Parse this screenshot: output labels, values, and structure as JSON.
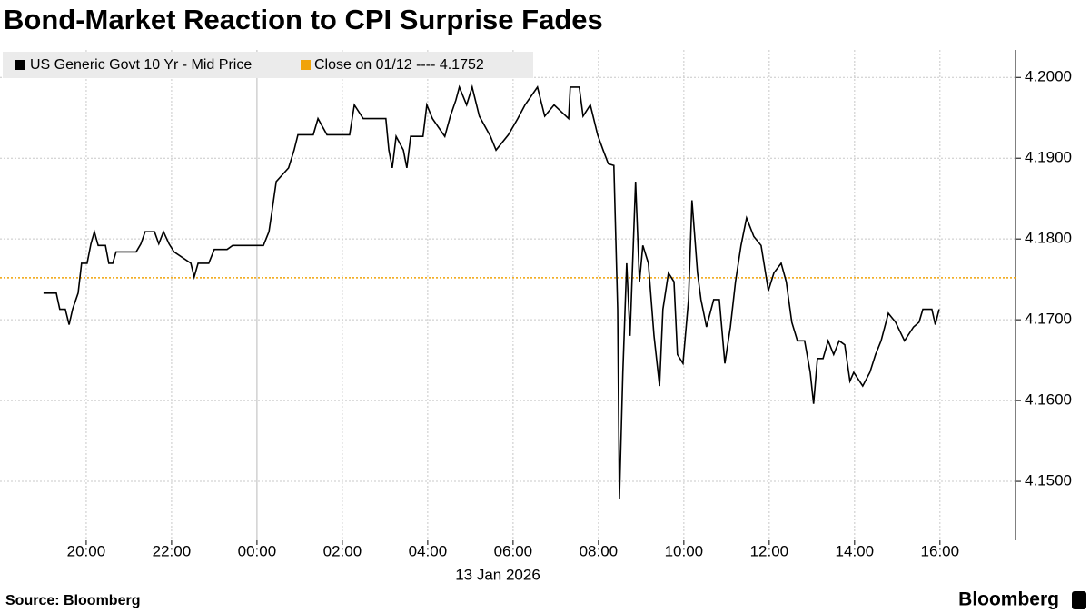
{
  "chart_data": {
    "type": "line",
    "title": "Bond-Market Reaction to CPI Surprise Fades",
    "x_sublabel": "13 Jan 2026",
    "source": "Source: Bloomberg",
    "brand": "Bloomberg",
    "x": [
      -5.0,
      -4.7,
      -4.62,
      -4.49,
      -4.4,
      -4.32,
      -4.19,
      -4.11,
      -3.98,
      -3.89,
      -3.81,
      -3.72,
      -3.55,
      -3.47,
      -3.38,
      -3.3,
      -2.83,
      -2.72,
      -2.62,
      -2.4,
      -2.3,
      -2.19,
      -2.06,
      -1.94,
      -1.55,
      -1.47,
      -1.38,
      -1.13,
      -1.0,
      -0.7,
      -0.57,
      0.15,
      0.28,
      0.36,
      0.45,
      0.74,
      0.87,
      0.96,
      1.32,
      1.43,
      1.64,
      2.17,
      2.28,
      2.49,
      3.02,
      3.09,
      3.17,
      3.26,
      3.43,
      3.51,
      3.6,
      3.89,
      3.98,
      4.11,
      4.4,
      4.53,
      4.66,
      4.74,
      4.91,
      5.04,
      5.21,
      5.47,
      5.6,
      5.89,
      6.11,
      6.28,
      6.57,
      6.74,
      6.96,
      7.3,
      7.34,
      7.55,
      7.64,
      7.81,
      7.98,
      8.11,
      8.23,
      8.36,
      8.45,
      8.49,
      8.57,
      8.66,
      8.74,
      8.87,
      8.96,
      9.04,
      9.17,
      9.3,
      9.43,
      9.51,
      9.64,
      9.77,
      9.85,
      9.98,
      10.11,
      10.19,
      10.32,
      10.4,
      10.53,
      10.7,
      10.83,
      10.96,
      11.09,
      11.21,
      11.34,
      11.47,
      11.64,
      11.81,
      11.98,
      12.11,
      12.28,
      12.4,
      12.53,
      12.66,
      12.83,
      12.96,
      13.04,
      13.13,
      13.26,
      13.38,
      13.51,
      13.64,
      13.77,
      13.89,
      13.98,
      14.19,
      14.36,
      14.49,
      14.62,
      14.79,
      14.96,
      15.17,
      15.38,
      15.51,
      15.6,
      15.81,
      15.89,
      15.98
    ],
    "series": [
      {
        "name": "US Generic Govt 10 Yr - Mid Price",
        "color": "#000000",
        "values": [
          4.1733,
          4.1733,
          4.1713,
          4.1713,
          4.1694,
          4.1713,
          4.1733,
          4.177,
          4.177,
          4.1794,
          4.1809,
          4.1792,
          4.1792,
          4.177,
          4.177,
          4.1784,
          4.1784,
          4.1794,
          4.1809,
          4.1809,
          4.1794,
          4.1809,
          4.1794,
          4.1784,
          4.177,
          4.1753,
          4.177,
          4.177,
          4.1787,
          4.1787,
          4.1792,
          4.1792,
          4.1809,
          4.1837,
          4.1871,
          4.1888,
          4.191,
          4.1929,
          4.1929,
          4.1949,
          4.1929,
          4.1929,
          4.1966,
          4.1949,
          4.1949,
          4.191,
          4.1888,
          4.1927,
          4.191,
          4.1888,
          4.1927,
          4.1927,
          4.1966,
          4.1949,
          4.1927,
          4.1952,
          4.1972,
          4.1988,
          4.1966,
          4.1988,
          4.1952,
          4.1927,
          4.191,
          4.1929,
          4.1949,
          4.1966,
          4.1988,
          4.1952,
          4.1966,
          4.1949,
          4.1988,
          4.1988,
          4.1952,
          4.1966,
          4.1929,
          4.191,
          4.1893,
          4.1891,
          4.1713,
          4.1478,
          4.1635,
          4.177,
          4.168,
          4.1871,
          4.1747,
          4.1792,
          4.177,
          4.168,
          4.1618,
          4.1713,
          4.1758,
          4.1747,
          4.1657,
          4.1646,
          4.1725,
          4.1848,
          4.1758,
          4.1725,
          4.1691,
          4.1725,
          4.1725,
          4.1646,
          4.1691,
          4.1747,
          4.1792,
          4.1826,
          4.1803,
          4.1792,
          4.1736,
          4.1758,
          4.177,
          4.1747,
          4.1697,
          4.1674,
          4.1674,
          4.1635,
          4.1596,
          4.1652,
          4.1652,
          4.1674,
          4.1657,
          4.1674,
          4.1669,
          4.1624,
          4.1635,
          4.1618,
          4.1635,
          4.1657,
          4.1674,
          4.1708,
          4.1697,
          4.1674,
          4.1691,
          4.1697,
          4.1713,
          4.1713,
          4.1694,
          4.1713
        ]
      }
    ],
    "reference": {
      "name": "Close on 01/12 ---- 4.1752",
      "value": 4.1752,
      "color": "#f0a30a"
    },
    "xlim": [
      -6.02,
      17.77
    ],
    "xticks": [
      {
        "value": -4,
        "label": "20:00"
      },
      {
        "value": -2,
        "label": "22:00"
      },
      {
        "value": 0,
        "label": "00:00"
      },
      {
        "value": 2,
        "label": "02:00"
      },
      {
        "value": 4,
        "label": "04:00"
      },
      {
        "value": 6,
        "label": "06:00"
      },
      {
        "value": 8,
        "label": "08:00"
      },
      {
        "value": 10,
        "label": "10:00"
      },
      {
        "value": 12,
        "label": "12:00"
      },
      {
        "value": 14,
        "label": "14:00"
      },
      {
        "value": 16,
        "label": "16:00"
      }
    ],
    "ylim": [
      4.1427,
      4.2034
    ],
    "yticks": [
      {
        "value": 4.15,
        "label": "4.1500"
      },
      {
        "value": 4.16,
        "label": "4.1600"
      },
      {
        "value": 4.17,
        "label": "4.1700"
      },
      {
        "value": 4.18,
        "label": "4.1800"
      },
      {
        "value": 4.19,
        "label": "4.1900"
      },
      {
        "value": 4.2,
        "label": "4.2000"
      }
    ],
    "grid": true
  }
}
